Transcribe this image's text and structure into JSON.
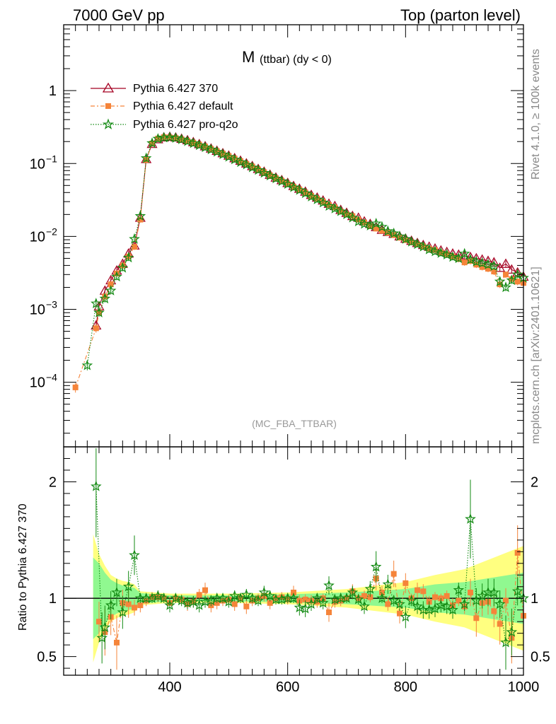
{
  "header": {
    "left": "7000 GeV pp",
    "right": "Top (parton level)"
  },
  "side_labels": {
    "rivet": "Rivet 4.1.0, ≥ 100k events",
    "mcplots": "mcplots.cern.ch [arXiv:2401.10621]"
  },
  "colors": {
    "pythia370": "#a50021",
    "default": "#f5843a",
    "proq2o": "#138a13",
    "band_outer": "#ffff80",
    "band_inner": "#90f890",
    "watermark": "#999999"
  },
  "chart_data": [
    {
      "type": "line",
      "title_main": "M",
      "title_sub": "(ttbar) (dy < 0)",
      "watermark": "(MC_FBA_TTBAR)",
      "xlabel": "",
      "ylabel": "",
      "yscale": "log",
      "xlim": [
        220,
        1000
      ],
      "ylim": [
        1.3e-05,
        8
      ],
      "y_ticks": [
        {
          "value": 0.0001,
          "base": "10",
          "exp": "−4"
        },
        {
          "value": 0.001,
          "base": "10",
          "exp": "−3"
        },
        {
          "value": 0.01,
          "base": "10",
          "exp": "−2"
        },
        {
          "value": 0.1,
          "base": "10",
          "exp": "−1"
        },
        {
          "value": 1,
          "base": "1",
          "exp": ""
        }
      ],
      "legend": [
        "Pythia 6.427 370",
        "Pythia 6.427 default",
        "Pythia 6.427 pro-q2o"
      ],
      "legend_position": "top-left",
      "series": [
        {
          "name": "Pythia 6.427 370",
          "marker": "triangle",
          "x": [
            275,
            280,
            290,
            300,
            310,
            320,
            330,
            340,
            350,
            360,
            370,
            380,
            390,
            400,
            410,
            420,
            430,
            440,
            450,
            460,
            470,
            480,
            490,
            500,
            510,
            520,
            530,
            540,
            550,
            560,
            570,
            580,
            590,
            600,
            610,
            620,
            630,
            640,
            650,
            660,
            670,
            680,
            690,
            700,
            710,
            720,
            730,
            740,
            750,
            760,
            770,
            780,
            790,
            800,
            810,
            820,
            830,
            840,
            850,
            860,
            870,
            880,
            890,
            900,
            910,
            920,
            930,
            940,
            950,
            960,
            970,
            980,
            990,
            1000
          ],
          "y": [
            0.0006,
            0.0011,
            0.0018,
            0.0025,
            0.0034,
            0.0042,
            0.0058,
            0.0075,
            0.018,
            0.115,
            0.185,
            0.215,
            0.228,
            0.232,
            0.227,
            0.218,
            0.208,
            0.196,
            0.184,
            0.172,
            0.16,
            0.149,
            0.138,
            0.128,
            0.118,
            0.109,
            0.1,
            0.092,
            0.084,
            0.077,
            0.07,
            0.064,
            0.059,
            0.054,
            0.049,
            0.045,
            0.041,
            0.037,
            0.034,
            0.031,
            0.028,
            0.026,
            0.023,
            0.021,
            0.019,
            0.018,
            0.016,
            0.0148,
            0.0134,
            0.0123,
            0.0115,
            0.0108,
            0.01,
            0.0093,
            0.0087,
            0.0081,
            0.0076,
            0.0072,
            0.0068,
            0.0064,
            0.0061,
            0.0058,
            0.0056,
            0.0054,
            0.0052,
            0.005,
            0.0048,
            0.0046,
            0.0044,
            0.0037,
            0.0042,
            0.0035,
            0.0032,
            0.0028
          ]
        },
        {
          "name": "Pythia 6.427 default",
          "marker": "square",
          "x": [
            240,
            275,
            280,
            290,
            300,
            310,
            320,
            330,
            340,
            350,
            360,
            370,
            380,
            390,
            400,
            410,
            420,
            430,
            440,
            450,
            460,
            470,
            480,
            490,
            500,
            510,
            520,
            530,
            540,
            550,
            560,
            570,
            580,
            590,
            600,
            610,
            620,
            630,
            640,
            650,
            660,
            670,
            680,
            690,
            700,
            710,
            720,
            730,
            740,
            750,
            760,
            770,
            780,
            790,
            800,
            810,
            820,
            830,
            840,
            850,
            860,
            870,
            880,
            890,
            900,
            910,
            920,
            930,
            940,
            950,
            960,
            970,
            980,
            990,
            1000
          ],
          "y": [
            8.5e-05,
            0.00055,
            0.0009,
            0.0015,
            0.0022,
            0.0031,
            0.004,
            0.0053,
            0.0072,
            0.017,
            0.112,
            0.188,
            0.22,
            0.23,
            0.228,
            0.224,
            0.215,
            0.204,
            0.193,
            0.182,
            0.171,
            0.159,
            0.148,
            0.137,
            0.127,
            0.117,
            0.108,
            0.099,
            0.091,
            0.083,
            0.076,
            0.069,
            0.063,
            0.058,
            0.053,
            0.048,
            0.044,
            0.04,
            0.036,
            0.033,
            0.03,
            0.027,
            0.025,
            0.022,
            0.02,
            0.019,
            0.017,
            0.0155,
            0.0138,
            0.0128,
            0.012,
            0.0112,
            0.0104,
            0.0096,
            0.0089,
            0.0083,
            0.0078,
            0.0073,
            0.0068,
            0.0065,
            0.006,
            0.0057,
            0.0053,
            0.0049,
            0.0044,
            0.0046,
            0.0041,
            0.0038,
            0.0036,
            0.0033,
            0.0022,
            0.003,
            0.0026,
            0.0024,
            0.0023
          ]
        },
        {
          "name": "Pythia 6.427 pro-q2o",
          "marker": "star",
          "x": [
            260,
            275,
            280,
            290,
            300,
            310,
            320,
            330,
            340,
            350,
            360,
            370,
            380,
            390,
            400,
            410,
            420,
            430,
            440,
            450,
            460,
            470,
            480,
            490,
            500,
            510,
            520,
            530,
            540,
            550,
            560,
            570,
            580,
            590,
            600,
            610,
            620,
            630,
            640,
            650,
            660,
            670,
            680,
            690,
            700,
            710,
            720,
            730,
            740,
            750,
            760,
            770,
            780,
            790,
            800,
            810,
            820,
            830,
            840,
            850,
            860,
            870,
            880,
            890,
            900,
            910,
            920,
            930,
            940,
            950,
            960,
            970,
            980,
            990,
            1000
          ],
          "y": [
            0.00017,
            0.0012,
            0.0009,
            0.0014,
            0.0018,
            0.0028,
            0.0037,
            0.0051,
            0.0092,
            0.019,
            0.118,
            0.19,
            0.218,
            0.226,
            0.228,
            0.223,
            0.213,
            0.201,
            0.189,
            0.177,
            0.166,
            0.155,
            0.144,
            0.133,
            0.123,
            0.113,
            0.104,
            0.096,
            0.088,
            0.081,
            0.074,
            0.068,
            0.062,
            0.057,
            0.052,
            0.047,
            0.043,
            0.039,
            0.035,
            0.032,
            0.029,
            0.026,
            0.024,
            0.022,
            0.02,
            0.018,
            0.016,
            0.0148,
            0.014,
            0.015,
            0.0135,
            0.0118,
            0.011,
            0.01,
            0.0092,
            0.0084,
            0.0078,
            0.0072,
            0.0066,
            0.0062,
            0.0059,
            0.0056,
            0.0052,
            0.005,
            0.0058,
            0.0048,
            0.0045,
            0.0043,
            0.0041,
            0.0039,
            0.0024,
            0.002,
            0.0025,
            0.003,
            0.0027
          ]
        }
      ]
    },
    {
      "type": "line",
      "ylabel": "Ratio to Pythia 6.427 370",
      "xlim": [
        220,
        1000
      ],
      "ylim": [
        0.34,
        2.3
      ],
      "y_ticks": [
        {
          "value": 0.5,
          "label": "0.5"
        },
        {
          "value": 1,
          "label": "1"
        },
        {
          "value": 2,
          "label": "2"
        }
      ],
      "x_ticks": [
        {
          "value": 400,
          "label": "400"
        },
        {
          "value": 600,
          "label": "600"
        },
        {
          "value": 800,
          "label": "800"
        },
        {
          "value": 1000,
          "label": "1000"
        }
      ],
      "reference": 1,
      "band": {
        "x": [
          270,
          280,
          290,
          300,
          310,
          320,
          330,
          340,
          350,
          400,
          500,
          600,
          700,
          800,
          850,
          900,
          950,
          1000
        ],
        "outer": [
          0.55,
          0.38,
          0.28,
          0.2,
          0.17,
          0.15,
          0.14,
          0.12,
          0.06,
          0.04,
          0.04,
          0.05,
          0.08,
          0.14,
          0.2,
          0.25,
          0.35,
          0.45
        ],
        "inner": [
          0.35,
          0.3,
          0.22,
          0.16,
          0.13,
          0.11,
          0.1,
          0.09,
          0.045,
          0.025,
          0.025,
          0.035,
          0.05,
          0.08,
          0.12,
          0.14,
          0.18,
          0.22
        ]
      },
      "series": [
        {
          "name": "Pythia 6.427 default",
          "marker": "square",
          "x": [
            280,
            290,
            300,
            310,
            320,
            330,
            340,
            350,
            360,
            370,
            380,
            390,
            400,
            410,
            420,
            430,
            440,
            450,
            460,
            470,
            480,
            490,
            500,
            510,
            520,
            530,
            540,
            550,
            560,
            570,
            580,
            590,
            600,
            610,
            620,
            630,
            640,
            650,
            660,
            670,
            680,
            690,
            700,
            710,
            720,
            730,
            740,
            750,
            760,
            770,
            780,
            790,
            800,
            810,
            820,
            830,
            840,
            850,
            860,
            870,
            880,
            890,
            900,
            910,
            920,
            930,
            940,
            950,
            960,
            970,
            980,
            990,
            1000
          ],
          "y": [
            0.8,
            0.71,
            0.84,
            0.62,
            0.96,
            0.95,
            0.92,
            0.94,
            0.98,
            1.01,
            1.01,
            1.0,
            0.96,
            1.0,
            0.99,
            0.95,
            0.97,
            1.03,
            1.07,
            0.94,
            0.96,
            0.98,
            0.99,
            0.95,
            1.0,
            0.93,
            0.98,
            1.0,
            1.02,
            0.96,
            1.0,
            1.01,
            0.99,
            1.05,
            0.98,
            0.99,
            0.98,
            0.97,
            1.0,
            0.88,
            0.97,
            0.98,
            1.0,
            1.06,
            1.0,
            1.02,
            1.01,
            1.17,
            1.05,
            0.95,
            1.21,
            0.87,
            1.13,
            1.0,
            1.07,
            1.06,
            0.97,
            1.01,
            1.0,
            1.02,
            0.94,
            0.98,
            0.93,
            1.05,
            0.83,
            0.96,
            0.97,
            0.89,
            0.78,
            0.98,
            0.66,
            1.39,
            0.85
          ]
        },
        {
          "name": "Pythia 6.427 pro-q2o",
          "marker": "star",
          "x": [
            275,
            285,
            290,
            300,
            310,
            320,
            330,
            340,
            350,
            360,
            370,
            380,
            390,
            400,
            410,
            420,
            430,
            440,
            450,
            460,
            470,
            480,
            490,
            500,
            510,
            520,
            530,
            540,
            550,
            560,
            570,
            580,
            590,
            600,
            610,
            620,
            630,
            640,
            650,
            660,
            670,
            680,
            690,
            700,
            710,
            720,
            730,
            740,
            750,
            760,
            770,
            780,
            790,
            800,
            810,
            820,
            830,
            840,
            850,
            860,
            870,
            880,
            890,
            900,
            910,
            920,
            930,
            940,
            950,
            960,
            970,
            980,
            990,
            1000
          ],
          "y": [
            1.96,
            0.66,
            0.75,
            0.94,
            1.05,
            0.88,
            1.1,
            1.37,
            1.0,
            1.0,
            1.0,
            1.02,
            1.0,
            0.94,
            1.0,
            0.98,
            0.96,
            0.97,
            0.94,
            0.97,
            0.98,
            1.0,
            1.0,
            0.97,
            1.02,
            1.0,
            1.03,
            1.0,
            0.98,
            1.05,
            1.02,
            0.99,
            0.99,
            1.0,
            1.0,
            0.92,
            0.91,
            0.95,
            1.0,
            0.96,
            1.11,
            0.99,
            1.0,
            1.0,
            1.05,
            0.99,
            0.93,
            1.08,
            1.27,
            1.0,
            1.12,
            0.98,
            0.95,
            0.84,
            0.98,
            0.93,
            0.9,
            0.9,
            0.91,
            0.94,
            0.93,
            0.9,
            1.07,
            0.95,
            1.68,
            0.98,
            1.02,
            1.05,
            1.05,
            0.95,
            0.62,
            0.71,
            1.06,
            1.0
          ]
        }
      ]
    }
  ]
}
